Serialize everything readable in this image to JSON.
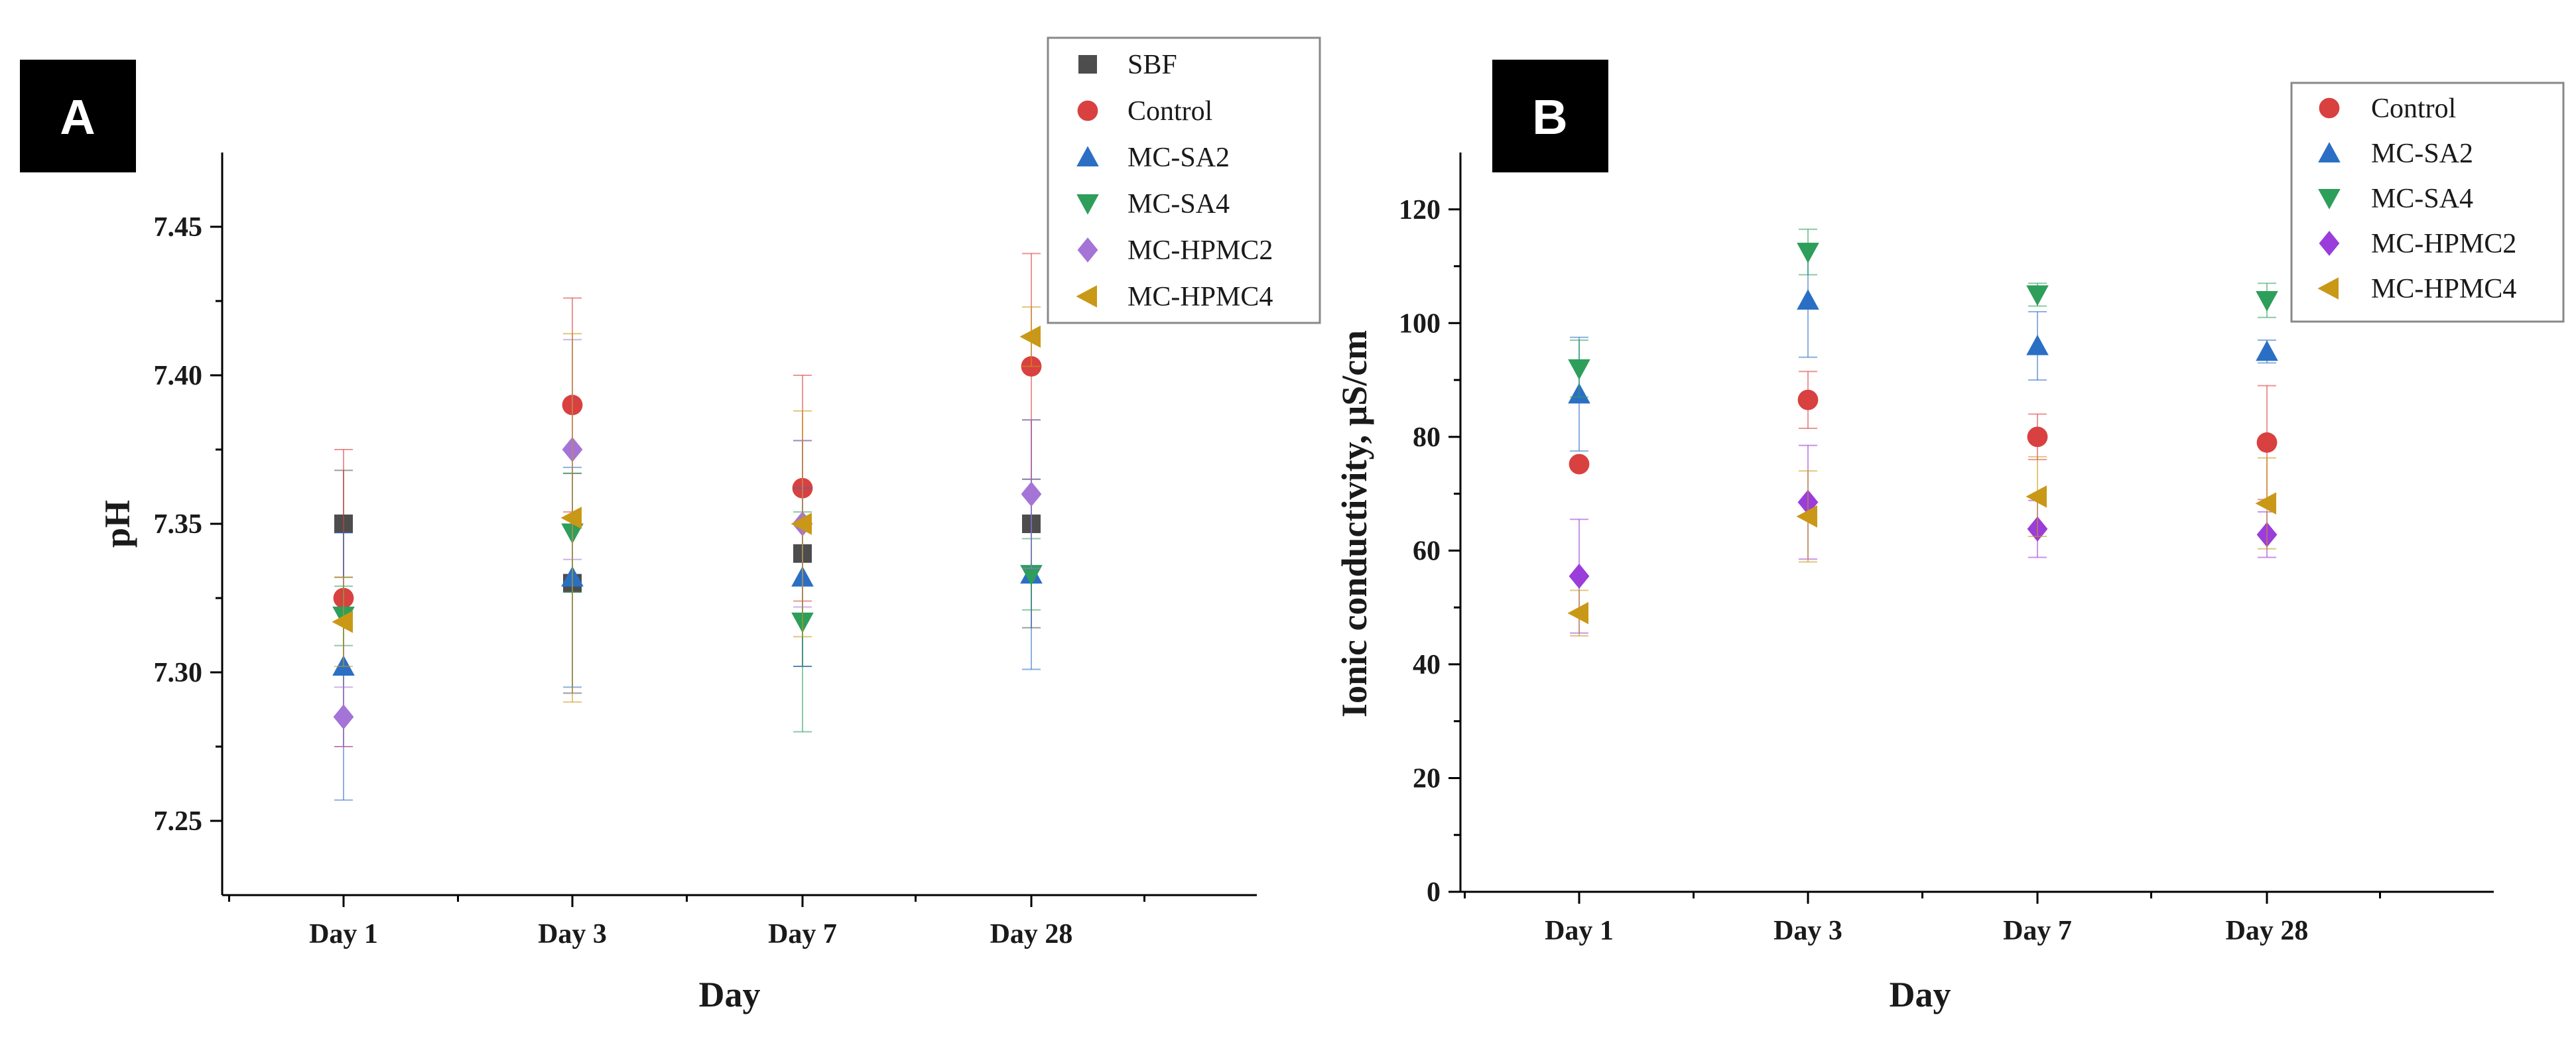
{
  "panels": [
    {
      "label": "A",
      "chart_data": {
        "type": "scatter",
        "title": "",
        "xlabel": "Day",
        "ylabel": "pH",
        "categories": [
          "Day 1",
          "Day 3",
          "Day 7",
          "Day 28"
        ],
        "ylim": [
          7.225,
          7.475
        ],
        "yticks": [
          7.25,
          7.3,
          7.35,
          7.4,
          7.45
        ],
        "ytick_labels": [
          "7.25",
          "7.30",
          "7.35",
          "7.40",
          "7.45"
        ],
        "grid": false,
        "legend": "top-right",
        "error_bars": true,
        "series": [
          {
            "name": "SBF",
            "marker": "square",
            "color": "#4d4d4d",
            "values": [
              7.35,
              7.33,
              7.34,
              7.35
            ],
            "errors": [
              0.018,
              0.037,
              0.038,
              0.035
            ]
          },
          {
            "name": "Control",
            "marker": "circle",
            "color": "#d94040",
            "values": [
              7.325,
              7.39,
              7.362,
              7.403
            ],
            "errors": [
              0.05,
              0.036,
              0.038,
              0.038
            ]
          },
          {
            "name": "MC-SA2",
            "marker": "triangle-up",
            "color": "#2b6fc5",
            "values": [
              7.302,
              7.332,
              7.332,
              7.333
            ],
            "errors": [
              0.045,
              0.037,
              0.03,
              0.032
            ]
          },
          {
            "name": "MC-SA4",
            "marker": "triangle-down",
            "color": "#2e9e5b",
            "values": [
              7.319,
              7.347,
              7.317,
              7.333
            ],
            "errors": [
              0.01,
              0.02,
              0.037,
              0.012
            ]
          },
          {
            "name": "MC-HPMC2",
            "marker": "diamond",
            "color": "#a474d6",
            "values": [
              7.285,
              7.375,
              7.35,
              7.36
            ],
            "errors": [
              0.01,
              0.037,
              0.028,
              0.025
            ]
          },
          {
            "name": "MC-HPMC4",
            "marker": "triangle-left",
            "color": "#c99816",
            "values": [
              7.317,
              7.352,
              7.35,
              7.413
            ],
            "errors": [
              0.015,
              0.062,
              0.038,
              0.01
            ]
          }
        ]
      }
    },
    {
      "label": "B",
      "chart_data": {
        "type": "scatter",
        "title": "",
        "xlabel": "Day",
        "ylabel": "Ionic conductivity, μS/cm",
        "categories": [
          "Day 1",
          "Day 3",
          "Day 7",
          "Day 28"
        ],
        "ylim": [
          0,
          130
        ],
        "yticks": [
          0,
          20,
          40,
          60,
          80,
          100,
          120
        ],
        "ytick_labels": [
          "0",
          "20",
          "40",
          "60",
          "80",
          "100",
          "120"
        ],
        "grid": false,
        "legend": "top-right",
        "error_bars": true,
        "series": [
          {
            "name": "Control",
            "marker": "circle",
            "color": "#d94040",
            "values": [
              75.2,
              86.5,
              80.0,
              79.0
            ],
            "errors": [
              0,
              5,
              4,
              10
            ]
          },
          {
            "name": "MC-SA2",
            "marker": "triangle-up",
            "color": "#2b6fc5",
            "values": [
              87.5,
              104.0,
              96.0,
              95.0
            ],
            "errors": [
              10,
              10,
              6,
              2
            ]
          },
          {
            "name": "MC-SA4",
            "marker": "triangle-down",
            "color": "#2e9e5b",
            "values": [
              92.0,
              112.5,
              105.0,
              104.0
            ],
            "errors": [
              5,
              4,
              2,
              3
            ]
          },
          {
            "name": "MC-HPMC2",
            "marker": "diamond",
            "color": "#9a3ddb",
            "values": [
              55.5,
              68.5,
              63.8,
              62.8
            ],
            "errors": [
              10,
              10,
              5,
              4
            ]
          },
          {
            "name": "MC-HPMC4",
            "marker": "triangle-left",
            "color": "#c99816",
            "values": [
              49.0,
              66.0,
              69.5,
              68.3
            ],
            "errors": [
              4,
              8,
              7,
              8
            ]
          }
        ]
      }
    }
  ]
}
